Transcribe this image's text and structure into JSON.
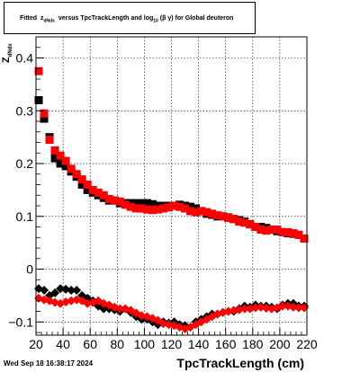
{
  "title": {
    "prefix": "Fitted",
    "z": "z",
    "z_sub": "dNdx",
    "middle": "versus TpcTrackLength and log",
    "log_sub": "10",
    "tail": "(β γ) for Global deuteron"
  },
  "y_axis_title": {
    "main": "Z",
    "sub": "dNdx"
  },
  "datestamp": "Wed Sep 18 16:38:17 2024",
  "chart_data": {
    "type": "scatter",
    "xlabel": "TpcTrackLength (cm)",
    "xlim": [
      20,
      220
    ],
    "ylim": [
      -0.125,
      0.44
    ],
    "x_ticks": [
      20,
      40,
      60,
      80,
      100,
      120,
      140,
      160,
      180,
      200,
      220
    ],
    "y_ticks": [
      {
        "value": 0.4,
        "label": "0.4"
      },
      {
        "value": 0.3,
        "label": "0.3"
      },
      {
        "value": 0.2,
        "label": "0.2"
      },
      {
        "value": 0.1,
        "label": "0.1"
      },
      {
        "value": 0.0,
        "label": "0"
      },
      {
        "value": -0.1,
        "label": "−0.1"
      }
    ],
    "grid": true,
    "series": [
      {
        "marker": "square",
        "color": "#000000",
        "x": [
          22,
          26,
          30,
          34,
          38,
          42,
          46,
          50,
          54,
          58,
          62,
          66,
          70,
          74,
          78,
          82,
          86,
          90,
          94,
          98,
          102,
          106,
          110,
          114,
          118,
          122,
          126,
          130,
          134,
          138,
          142,
          146,
          150,
          154,
          158,
          162,
          166,
          170,
          174,
          178,
          182,
          186,
          190,
          194,
          198,
          202,
          206,
          210,
          214,
          218
        ],
        "y": [
          0.32,
          0.285,
          0.25,
          0.21,
          0.2,
          0.195,
          0.185,
          0.175,
          0.16,
          0.15,
          0.145,
          0.14,
          0.135,
          0.13,
          0.13,
          0.125,
          0.125,
          0.125,
          0.125,
          0.125,
          0.125,
          0.123,
          0.12,
          0.12,
          0.12,
          0.12,
          0.122,
          0.12,
          0.118,
          0.115,
          0.11,
          0.105,
          0.103,
          0.1,
          0.1,
          0.098,
          0.095,
          0.093,
          0.09,
          0.085,
          0.08,
          0.08,
          0.078,
          0.075,
          0.072,
          0.07,
          0.068,
          0.067,
          0.065,
          0.058
        ]
      },
      {
        "marker": "square",
        "color": "#ff0000",
        "x": [
          22,
          26,
          30,
          34,
          38,
          42,
          46,
          50,
          54,
          58,
          62,
          66,
          70,
          74,
          78,
          82,
          86,
          90,
          94,
          98,
          102,
          106,
          110,
          114,
          118,
          122,
          126,
          130,
          134,
          138,
          142,
          146,
          150,
          154,
          158,
          162,
          166,
          170,
          174,
          178,
          182,
          186,
          190,
          194,
          198,
          202,
          206,
          210,
          214,
          218
        ],
        "y": [
          0.375,
          0.295,
          0.245,
          0.225,
          0.215,
          0.205,
          0.19,
          0.18,
          0.17,
          0.16,
          0.15,
          0.145,
          0.14,
          0.133,
          0.13,
          0.128,
          0.122,
          0.118,
          0.115,
          0.115,
          0.113,
          0.112,
          0.113,
          0.115,
          0.117,
          0.12,
          0.118,
          0.115,
          0.11,
          0.108,
          0.11,
          0.108,
          0.105,
          0.102,
          0.1,
          0.097,
          0.095,
          0.09,
          0.088,
          0.085,
          0.08,
          0.075,
          0.073,
          0.075,
          0.075,
          0.07,
          0.07,
          0.068,
          0.065,
          0.058
        ]
      },
      {
        "marker": "diamond",
        "color": "#000000",
        "x": [
          22,
          26,
          30,
          34,
          38,
          42,
          46,
          50,
          54,
          58,
          62,
          66,
          70,
          74,
          78,
          82,
          86,
          90,
          94,
          98,
          102,
          106,
          110,
          114,
          118,
          122,
          126,
          130,
          134,
          138,
          142,
          146,
          150,
          154,
          158,
          162,
          166,
          170,
          174,
          178,
          182,
          186,
          190,
          194,
          198,
          202,
          206,
          210,
          214,
          218
        ],
        "y": [
          -0.037,
          -0.04,
          -0.05,
          -0.045,
          -0.037,
          -0.038,
          -0.04,
          -0.04,
          -0.05,
          -0.055,
          -0.06,
          -0.07,
          -0.075,
          -0.075,
          -0.077,
          -0.08,
          -0.075,
          -0.082,
          -0.09,
          -0.095,
          -0.095,
          -0.1,
          -0.105,
          -0.1,
          -0.102,
          -0.1,
          -0.105,
          -0.107,
          -0.11,
          -0.1,
          -0.095,
          -0.09,
          -0.085,
          -0.085,
          -0.082,
          -0.08,
          -0.08,
          -0.075,
          -0.07,
          -0.072,
          -0.068,
          -0.07,
          -0.07,
          -0.072,
          -0.075,
          -0.068,
          -0.065,
          -0.065,
          -0.07,
          -0.07
        ]
      },
      {
        "marker": "diamond",
        "color": "#ff0000",
        "x": [
          22,
          26,
          30,
          34,
          38,
          42,
          46,
          50,
          54,
          58,
          62,
          66,
          70,
          74,
          78,
          82,
          86,
          90,
          94,
          98,
          102,
          106,
          110,
          114,
          118,
          122,
          126,
          130,
          134,
          138,
          142,
          146,
          150,
          154,
          158,
          162,
          166,
          170,
          174,
          178,
          182,
          186,
          190,
          194,
          198,
          202,
          206,
          210,
          214,
          218
        ],
        "y": [
          -0.055,
          -0.058,
          -0.06,
          -0.063,
          -0.065,
          -0.062,
          -0.06,
          -0.058,
          -0.06,
          -0.065,
          -0.063,
          -0.06,
          -0.065,
          -0.068,
          -0.072,
          -0.075,
          -0.075,
          -0.078,
          -0.083,
          -0.088,
          -0.09,
          -0.093,
          -0.097,
          -0.103,
          -0.105,
          -0.107,
          -0.11,
          -0.113,
          -0.11,
          -0.105,
          -0.1,
          -0.095,
          -0.09,
          -0.085,
          -0.082,
          -0.08,
          -0.078,
          -0.077,
          -0.075,
          -0.075,
          -0.073,
          -0.072,
          -0.074,
          -0.075,
          -0.073,
          -0.07,
          -0.07,
          -0.072,
          -0.073,
          -0.073
        ]
      }
    ]
  }
}
